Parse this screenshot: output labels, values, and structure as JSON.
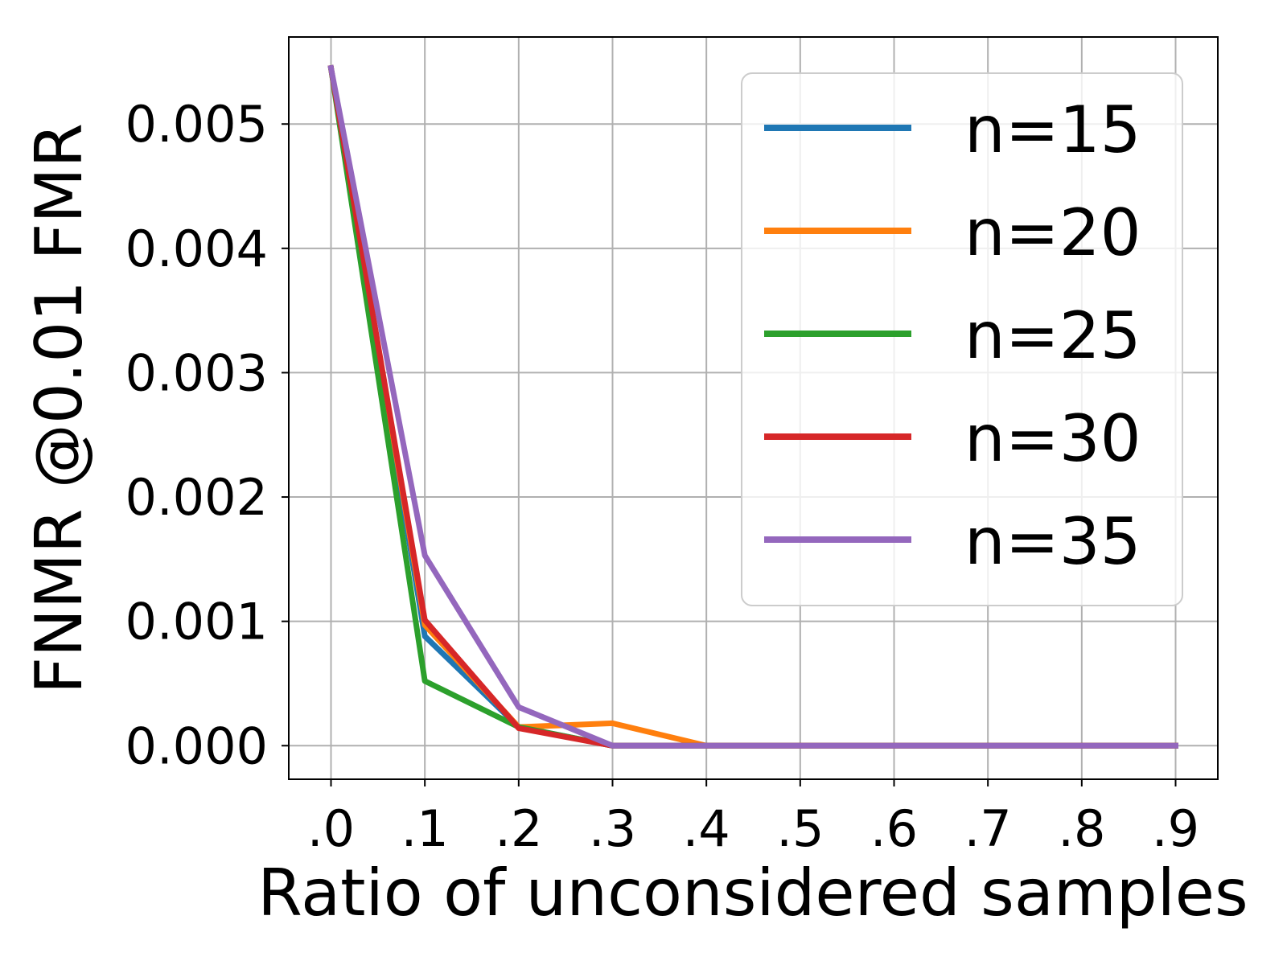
{
  "chart_data": {
    "type": "line",
    "title": "",
    "xlabel": "Ratio of unconsidered samples",
    "ylabel": "FNMR @0.01 FMR",
    "x": [
      0.0,
      0.1,
      0.2,
      0.3,
      0.4,
      0.5,
      0.6,
      0.7,
      0.8,
      0.9
    ],
    "x_tick_labels": [
      ".0",
      ".1",
      ".2",
      ".3",
      ".4",
      ".5",
      ".6",
      ".7",
      ".8",
      ".9"
    ],
    "y_ticks": [
      0.0,
      0.001,
      0.002,
      0.003,
      0.004,
      0.005
    ],
    "y_tick_labels": [
      "0.000",
      "0.001",
      "0.002",
      "0.003",
      "0.004",
      "0.005"
    ],
    "xlim": [
      -0.045,
      0.945
    ],
    "ylim": [
      -0.00027,
      0.0057
    ],
    "grid": true,
    "legend_position": "top-right",
    "series": [
      {
        "name": "n=15",
        "color": "#1f77b4",
        "values": [
          0.00545,
          0.00088,
          0.00015,
          0.0,
          0.0,
          0.0,
          0.0,
          0.0,
          0.0,
          0.0
        ]
      },
      {
        "name": "n=20",
        "color": "#ff7f0e",
        "values": [
          0.00545,
          0.00097,
          0.00015,
          0.00018,
          0.0,
          0.0,
          0.0,
          0.0,
          0.0,
          0.0
        ]
      },
      {
        "name": "n=25",
        "color": "#2ca02c",
        "values": [
          0.00545,
          0.00052,
          0.00015,
          0.0,
          0.0,
          0.0,
          0.0,
          0.0,
          0.0,
          0.0
        ]
      },
      {
        "name": "n=30",
        "color": "#d62728",
        "values": [
          0.00545,
          0.00101,
          0.00014,
          0.0,
          0.0,
          0.0,
          0.0,
          0.0,
          0.0,
          0.0
        ]
      },
      {
        "name": "n=35",
        "color": "#9467bd",
        "values": [
          0.00545,
          0.00153,
          0.00031,
          0.0,
          0.0,
          0.0,
          0.0,
          0.0,
          0.0,
          0.0
        ]
      }
    ]
  }
}
